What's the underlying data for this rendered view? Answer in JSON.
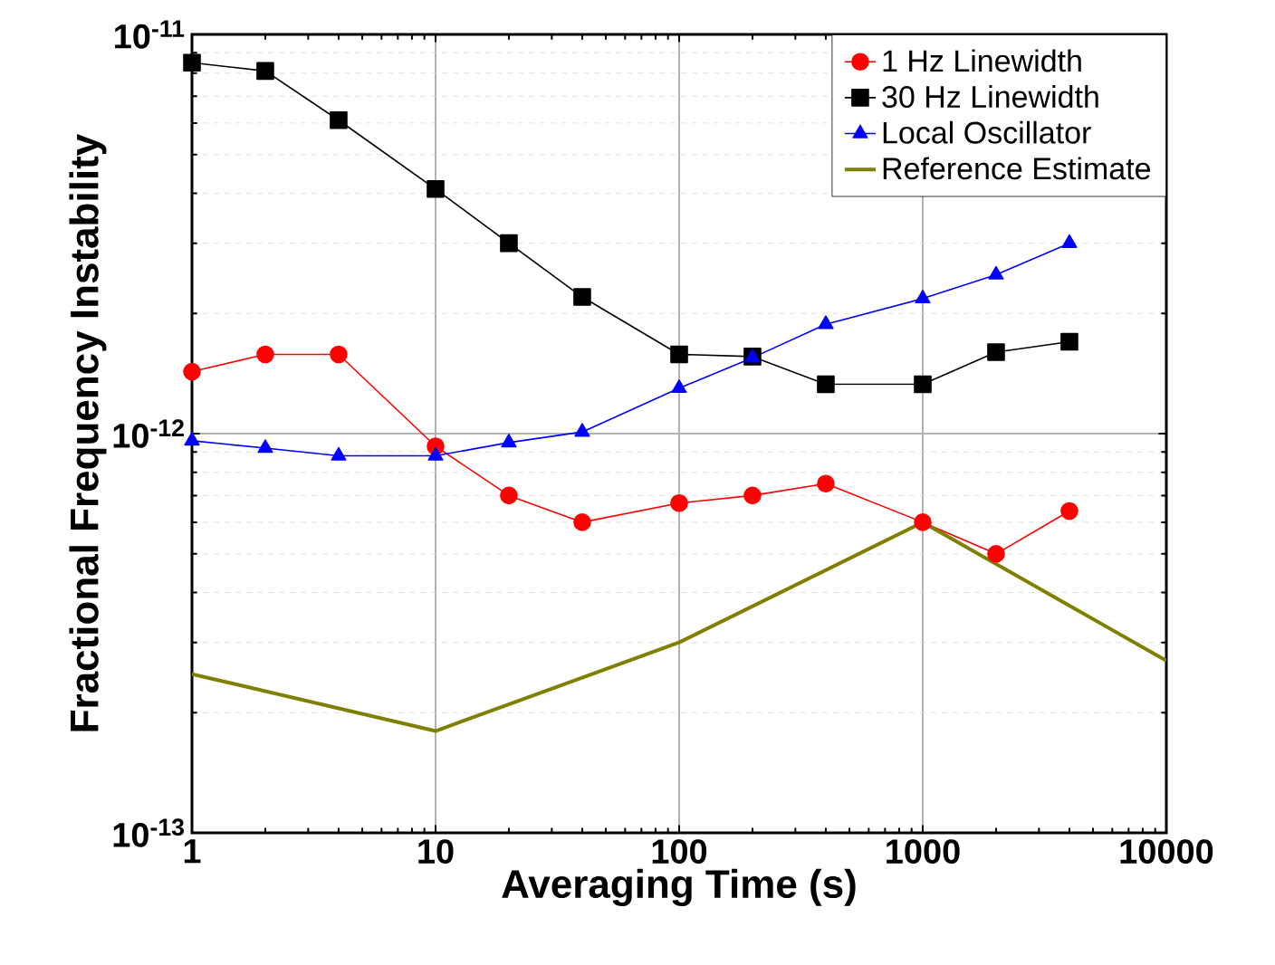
{
  "chart_data": {
    "type": "line",
    "xlabel": "Averaging Time (s)",
    "ylabel": "Fractional Frequency Instability",
    "log": "xy",
    "grid": true,
    "legend": "top right",
    "xlim": [
      1,
      10000
    ],
    "xticks": [
      1,
      10,
      100,
      1000,
      10000
    ],
    "ylim": [
      1e-13,
      1e-11
    ],
    "yticks": [
      {
        "value": 1e-13,
        "label": "10$^{-13}$"
      },
      {
        "value": 1e-12,
        "label": "10$^{-12}$"
      },
      {
        "value": 1e-11,
        "label": "10$^{-11}$"
      }
    ],
    "x": [
      1,
      2,
      4,
      10,
      20,
      40,
      100,
      200,
      400,
      1000,
      2000,
      4000
    ],
    "series": [
      {
        "name": "1 Hz Linewidth",
        "color": "#ff0000",
        "marker": "circle",
        "values": [
          1.43e-12,
          1.58e-12,
          1.58e-12,
          9.3e-13,
          7e-13,
          6e-13,
          6.7e-13,
          7e-13,
          7.5e-13,
          6e-13,
          5e-13,
          6.4e-13
        ]
      },
      {
        "name": "30 Hz Linewidth",
        "color": "#000000",
        "marker": "square",
        "values": [
          8.5e-12,
          8.1e-12,
          6.1e-12,
          4.1e-12,
          3e-12,
          2.2e-12,
          1.58e-12,
          1.56e-12,
          1.33e-12,
          1.33e-12,
          1.6e-12,
          1.7e-12
        ]
      },
      {
        "name": "Local Oscillator",
        "color": "#0000ff",
        "marker": "triangle",
        "values": [
          9.6e-13,
          9.2e-13,
          8.8e-13,
          8.8e-13,
          9.5e-13,
          1.01e-12,
          1.3e-12,
          1.55e-12,
          1.88e-12,
          2.18e-12,
          2.5e-12,
          3e-12
        ]
      },
      {
        "name": "Reference Estimate",
        "color": "#808000",
        "marker": "none",
        "x": [
          1,
          10,
          100,
          1000,
          10000
        ],
        "values": [
          2.5e-13,
          1.8e-13,
          3e-13,
          6e-13,
          2.7e-13
        ]
      }
    ]
  }
}
